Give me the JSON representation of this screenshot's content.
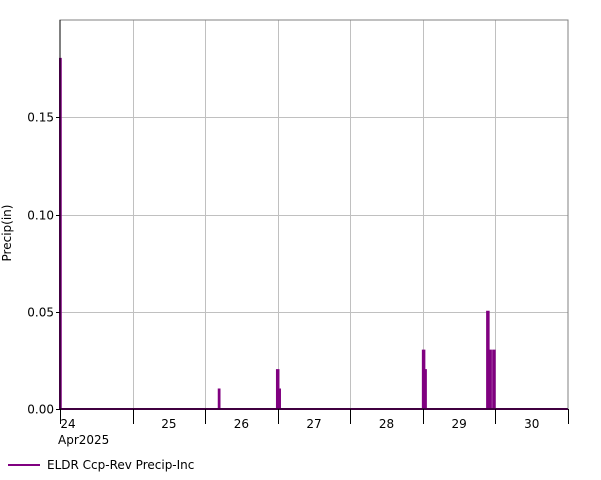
{
  "chart_data": {
    "type": "line",
    "step": true,
    "title": "",
    "xlabel": "",
    "ylabel": "Precip(in)",
    "ylim": [
      0,
      0.2
    ],
    "yticks": [
      0.0,
      0.05,
      0.1,
      0.15
    ],
    "ytick_labels": [
      "0.00",
      "0.05",
      "0.10",
      "0.15"
    ],
    "xlim": [
      "2025-04-24T00:00",
      "2025-04-31T00:00"
    ],
    "xticks": [
      "24",
      "25",
      "26",
      "27",
      "28",
      "29",
      "30"
    ],
    "x_group_label": "Apr2025",
    "grid": true,
    "legend": "bottom-left",
    "colors": {
      "series": "#800080",
      "grid": "#c0c0c0",
      "axis": "#000000"
    },
    "series": [
      {
        "name": "ELDR Ccp-Rev Precip-Inc",
        "points": [
          [
            "2025-04-24T00:00",
            0.18
          ],
          [
            "2025-04-24T00:15",
            0.18
          ],
          [
            "2025-04-26T04:30",
            0.01
          ],
          [
            "2025-04-26T04:45",
            0.01
          ],
          [
            "2025-04-26T23:45",
            0.02
          ],
          [
            "2025-04-27T00:15",
            0.02
          ],
          [
            "2025-04-27T00:30",
            0.01
          ],
          [
            "2025-04-27T00:45",
            0.01
          ],
          [
            "2025-04-29T00:00",
            0.03
          ],
          [
            "2025-04-29T00:30",
            0.03
          ],
          [
            "2025-04-29T00:45",
            0.02
          ],
          [
            "2025-04-29T01:00",
            0.02
          ],
          [
            "2025-04-29T21:15",
            0.05
          ],
          [
            "2025-04-29T21:45",
            0.05
          ],
          [
            "2025-04-29T22:00",
            0.03
          ],
          [
            "2025-04-29T22:30",
            0.03
          ],
          [
            "2025-04-29T23:15",
            0.03
          ],
          [
            "2025-04-29T23:45",
            0.03
          ]
        ]
      }
    ]
  }
}
